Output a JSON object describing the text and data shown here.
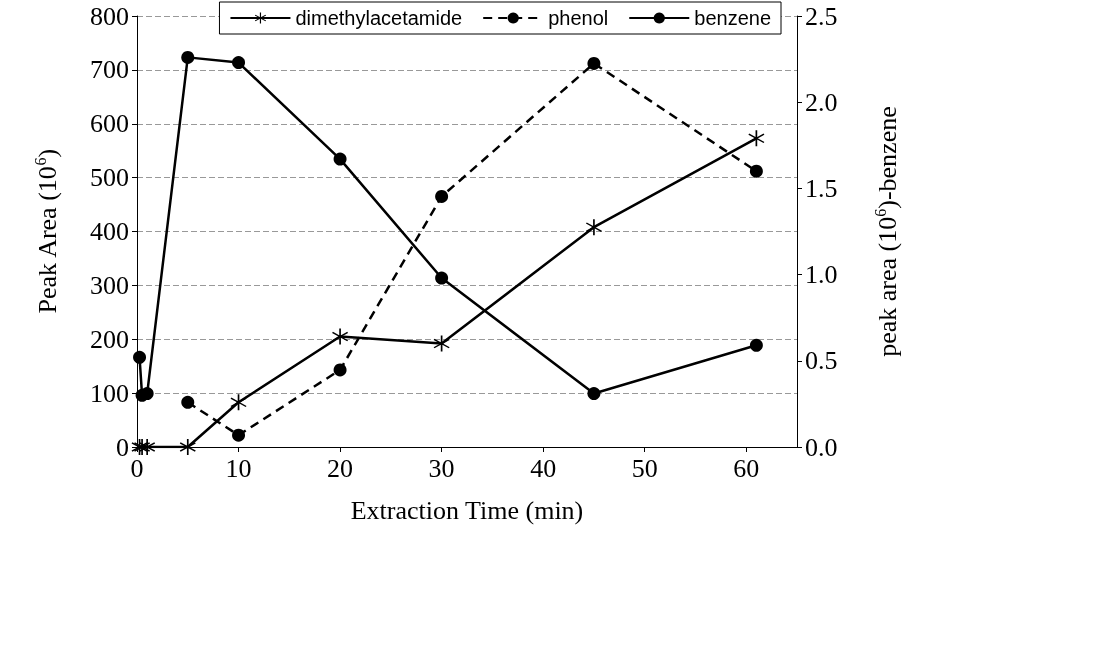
{
  "chart_data": {
    "type": "line",
    "xlabel": "Extraction Time (min)",
    "ylabel": "Peak Area (10$^{6}$)",
    "y2label": "peak area (10$^{6}$)-benzene",
    "xlim": [
      0,
      65
    ],
    "xticks": [
      0,
      10,
      20,
      30,
      40,
      50,
      60
    ],
    "ylim": [
      0,
      800
    ],
    "yticks": [
      0,
      100,
      200,
      300,
      400,
      500,
      600,
      700,
      800
    ],
    "y2lim": [
      0,
      2.5
    ],
    "y2ticks": [
      {
        "value": 0,
        "label": "0.0"
      },
      {
        "value": 0.5,
        "label": "0.5"
      },
      {
        "value": 1,
        "label": "1.0"
      },
      {
        "value": 1.5,
        "label": "1.5"
      },
      {
        "value": 2,
        "label": "2.0"
      },
      {
        "value": 2.5,
        "label": "2.5"
      }
    ],
    "grid": "y",
    "legend": "top",
    "series": [
      {
        "name": "dimethylacetamide",
        "color": "#000000",
        "marker": "cross",
        "line_style": "solid",
        "x": [
          0.25,
          0.5,
          1,
          5,
          10,
          20,
          30,
          45,
          61
        ],
        "values": [
          0,
          0,
          0,
          0,
          83,
          205,
          192,
          408,
          573
        ]
      },
      {
        "name": "phenol",
        "color": "#000000",
        "marker": "circle",
        "line_style": "dashed",
        "x": [
          5,
          10,
          20,
          30,
          45,
          61
        ],
        "values": [
          83,
          22,
          143,
          465,
          712,
          512
        ]
      },
      {
        "name": "benzene",
        "color": "#000000",
        "marker": "circle",
        "line_style": "solid",
        "axis": "y2",
        "x": [
          0.25,
          0.5,
          1,
          5,
          10,
          20,
          30,
          45,
          61
        ],
        "values": [
          0.52,
          0.3,
          0.31,
          2.26,
          2.23,
          1.67,
          0.98,
          0.31,
          0.59
        ]
      }
    ]
  }
}
